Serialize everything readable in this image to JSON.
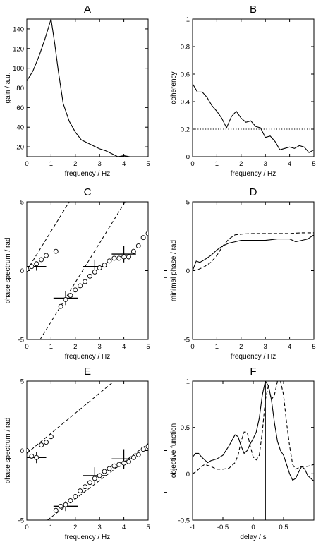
{
  "chart_data": [
    {
      "id": "A",
      "type": "line",
      "title": "A",
      "xlabel": "frequency / Hz",
      "ylabel": "gain / a.u.",
      "xlim": [
        0,
        5
      ],
      "ylim": [
        10,
        150
      ],
      "xticks": [
        0,
        1,
        2,
        3,
        4,
        5
      ],
      "yticks": [
        20,
        40,
        60,
        80,
        100,
        120,
        140
      ],
      "series": [
        {
          "style": "solid",
          "x": [
            0,
            0.25,
            0.5,
            0.75,
            1.0,
            1.15,
            1.3,
            1.5,
            1.75,
            2.0,
            2.25,
            2.5,
            2.75,
            3.0,
            3.25,
            3.5,
            3.75,
            4.0,
            4.25,
            4.5,
            4.75,
            5.0
          ],
          "y": [
            87,
            97,
            112,
            130,
            150,
            125,
            97,
            64,
            46,
            35,
            27,
            24,
            21,
            18,
            16,
            13,
            10,
            11,
            10,
            10,
            10,
            9
          ]
        }
      ]
    },
    {
      "id": "B",
      "type": "line",
      "title": "B",
      "xlabel": "frequency / Hz",
      "ylabel": "coherency",
      "xlim": [
        0,
        5
      ],
      "ylim": [
        0,
        1
      ],
      "xticks": [
        0,
        1,
        2,
        3,
        4,
        5
      ],
      "yticks": [
        0,
        0.2,
        0.4,
        0.6,
        0.8,
        1
      ],
      "series": [
        {
          "style": "solid",
          "x": [
            0,
            0.2,
            0.4,
            0.6,
            0.8,
            1.0,
            1.2,
            1.4,
            1.6,
            1.8,
            2.0,
            2.2,
            2.4,
            2.6,
            2.8,
            3.0,
            3.2,
            3.4,
            3.6,
            3.8,
            4.0,
            4.2,
            4.4,
            4.6,
            4.8,
            5.0
          ],
          "y": [
            0.53,
            0.47,
            0.47,
            0.43,
            0.37,
            0.33,
            0.28,
            0.21,
            0.29,
            0.33,
            0.28,
            0.25,
            0.26,
            0.22,
            0.21,
            0.14,
            0.15,
            0.11,
            0.05,
            0.06,
            0.07,
            0.06,
            0.08,
            0.07,
            0.03,
            0.05
          ]
        },
        {
          "style": "dotted",
          "x": [
            0,
            5
          ],
          "y": [
            0.2,
            0.2
          ]
        }
      ]
    },
    {
      "id": "C",
      "type": "scatter",
      "title": "C",
      "xlabel": "frequency / Hz",
      "ylabel": "phase spectrum / rad",
      "xlim": [
        0,
        5
      ],
      "ylim": [
        -5,
        5
      ],
      "xticks": [
        0,
        1,
        2,
        3,
        4,
        5
      ],
      "yticks": [
        -5,
        0,
        5
      ],
      "points_x": [
        0.0,
        0.2,
        0.4,
        0.6,
        0.8,
        1.2,
        1.4,
        1.6,
        1.8,
        2.0,
        2.2,
        2.4,
        2.6,
        2.8,
        3.0,
        3.2,
        3.4,
        3.6,
        3.8,
        4.0,
        4.2,
        4.4,
        4.6,
        4.8,
        5.0
      ],
      "points_y": [
        0.1,
        0.3,
        0.5,
        0.8,
        1.1,
        1.4,
        -2.6,
        -2.1,
        -1.8,
        -1.4,
        -1.1,
        -0.8,
        -0.4,
        -0.1,
        0.2,
        0.4,
        0.7,
        0.9,
        0.9,
        1.0,
        1.0,
        1.4,
        1.8,
        2.4,
        2.7
      ],
      "bars": [
        {
          "x": 0.4,
          "y": 0.3,
          "half_width": 0.4,
          "err": 0.3
        },
        {
          "x": 1.6,
          "y": -2.0,
          "half_width": 0.5,
          "err": 0.5
        },
        {
          "x": 2.8,
          "y": 0.3,
          "half_width": 0.5,
          "err": 0.5
        },
        {
          "x": 4.0,
          "y": 1.2,
          "half_width": 0.5,
          "err": 0.6
        }
      ],
      "dashed_lines": [
        {
          "x": [
            0.0,
            1.75
          ],
          "y": [
            0.0,
            5.0
          ]
        },
        {
          "x": [
            0.55,
            4.05
          ],
          "y": [
            -5.0,
            5.0
          ]
        }
      ],
      "side_marks_y": [
        0,
        -0.5
      ]
    },
    {
      "id": "D",
      "type": "line",
      "title": "D",
      "xlabel": "frequency / Hz",
      "ylabel": "minimal phase / rad",
      "xlim": [
        0,
        5
      ],
      "ylim": [
        -5,
        5
      ],
      "xticks": [
        0,
        1,
        2,
        3,
        4,
        5
      ],
      "yticks": [
        -5,
        0,
        5
      ],
      "series": [
        {
          "style": "solid",
          "x": [
            0,
            0.15,
            0.3,
            0.5,
            0.75,
            1.0,
            1.25,
            1.5,
            1.75,
            2.0,
            2.5,
            3.0,
            3.5,
            4.0,
            4.25,
            4.5,
            4.75,
            5.0
          ],
          "y": [
            0.0,
            0.7,
            0.6,
            0.8,
            1.1,
            1.5,
            1.8,
            2.0,
            2.1,
            2.2,
            2.2,
            2.2,
            2.3,
            2.3,
            2.1,
            2.2,
            2.3,
            2.6
          ]
        },
        {
          "style": "dashed",
          "x": [
            0,
            0.25,
            0.5,
            0.75,
            1.0,
            1.25,
            1.5,
            1.75,
            2.0,
            2.5,
            3.0,
            3.5,
            4.0,
            4.5,
            5.0
          ],
          "y": [
            0.0,
            0.1,
            0.3,
            0.6,
            1.1,
            1.8,
            2.3,
            2.6,
            2.65,
            2.7,
            2.7,
            2.7,
            2.7,
            2.75,
            2.75
          ]
        }
      ]
    },
    {
      "id": "E",
      "type": "scatter",
      "title": "E",
      "xlabel": "frequency / Hz",
      "ylabel": "phase spectrum / rad",
      "xlim": [
        0,
        5
      ],
      "ylim": [
        -5,
        5
      ],
      "xticks": [
        0,
        1,
        2,
        3,
        4,
        5
      ],
      "yticks": [
        -5,
        0,
        5
      ],
      "points_x": [
        0.0,
        0.2,
        0.4,
        0.6,
        0.8,
        1.0,
        1.2,
        1.4,
        1.6,
        1.8,
        2.0,
        2.2,
        2.4,
        2.6,
        2.8,
        3.0,
        3.2,
        3.4,
        3.6,
        3.8,
        4.0,
        4.2,
        4.4,
        4.6,
        4.8,
        5.0
      ],
      "points_y": [
        0.0,
        -0.4,
        -0.5,
        0.4,
        0.6,
        1.0,
        -4.3,
        -4.0,
        -3.9,
        -3.6,
        -3.3,
        -2.9,
        -2.6,
        -2.3,
        -2.0,
        -1.8,
        -1.5,
        -1.3,
        -1.1,
        -1.0,
        -0.9,
        -0.8,
        -0.5,
        -0.3,
        0.1,
        0.3
      ],
      "bars": [
        {
          "x": 0.4,
          "y": -0.5,
          "half_width": 0.4,
          "err": 0.4
        },
        {
          "x": 1.6,
          "y": -4.0,
          "half_width": 0.5,
          "err": 0.35
        },
        {
          "x": 2.8,
          "y": -1.8,
          "half_width": 0.5,
          "err": 0.6
        },
        {
          "x": 4.0,
          "y": -0.6,
          "half_width": 0.5,
          "err": 0.7
        }
      ],
      "dashed_lines": [
        {
          "x": [
            0.0,
            3.6
          ],
          "y": [
            -0.2,
            5.0
          ]
        },
        {
          "x": [
            0.85,
            5.0
          ],
          "y": [
            -5.0,
            0.5
          ]
        }
      ],
      "side_marks_y": [
        0,
        -3
      ]
    },
    {
      "id": "F",
      "type": "line",
      "title": "F",
      "xlabel": "delay / s",
      "ylabel": "objective function",
      "xlim": [
        -1,
        1
      ],
      "ylim": [
        -0.5,
        1
      ],
      "xticks": [
        -1,
        -0.5,
        0,
        0.5
      ],
      "yticks": [
        -0.5,
        0,
        0.5,
        1
      ],
      "vline_x": 0.2,
      "series": [
        {
          "style": "solid",
          "x": [
            -1.0,
            -0.95,
            -0.9,
            -0.85,
            -0.8,
            -0.75,
            -0.7,
            -0.6,
            -0.5,
            -0.4,
            -0.3,
            -0.25,
            -0.2,
            -0.15,
            -0.1,
            -0.05,
            0.0,
            0.05,
            0.1,
            0.15,
            0.2,
            0.25,
            0.3,
            0.35,
            0.4,
            0.45,
            0.5,
            0.55,
            0.6,
            0.65,
            0.7,
            0.75,
            0.8,
            0.85,
            0.9,
            0.95,
            1.0
          ],
          "y": [
            0.18,
            0.22,
            0.22,
            0.18,
            0.15,
            0.12,
            0.14,
            0.16,
            0.2,
            0.3,
            0.42,
            0.4,
            0.3,
            0.22,
            0.25,
            0.32,
            0.38,
            0.45,
            0.6,
            0.85,
            1.0,
            0.95,
            0.8,
            0.55,
            0.35,
            0.25,
            0.2,
            0.1,
            0.0,
            -0.07,
            -0.05,
            0.02,
            0.08,
            0.05,
            -0.02,
            -0.05,
            -0.08
          ]
        },
        {
          "style": "dashed",
          "x": [
            -1.0,
            -0.95,
            -0.9,
            -0.85,
            -0.8,
            -0.7,
            -0.6,
            -0.5,
            -0.4,
            -0.3,
            -0.25,
            -0.2,
            -0.15,
            -0.1,
            -0.05,
            0.0,
            0.05,
            0.1,
            0.15,
            0.2,
            0.25,
            0.3,
            0.35,
            0.4,
            0.45,
            0.5,
            0.55,
            0.6,
            0.65,
            0.7,
            0.8,
            0.9,
            1.0
          ],
          "y": [
            0.0,
            0.02,
            0.05,
            0.08,
            0.1,
            0.08,
            0.05,
            0.05,
            0.06,
            0.12,
            0.2,
            0.35,
            0.45,
            0.45,
            0.3,
            0.18,
            0.15,
            0.2,
            0.45,
            0.8,
            0.95,
            0.8,
            0.85,
            1.0,
            1.0,
            0.85,
            0.55,
            0.3,
            0.1,
            0.05,
            0.08,
            0.08,
            0.1
          ]
        }
      ]
    }
  ]
}
